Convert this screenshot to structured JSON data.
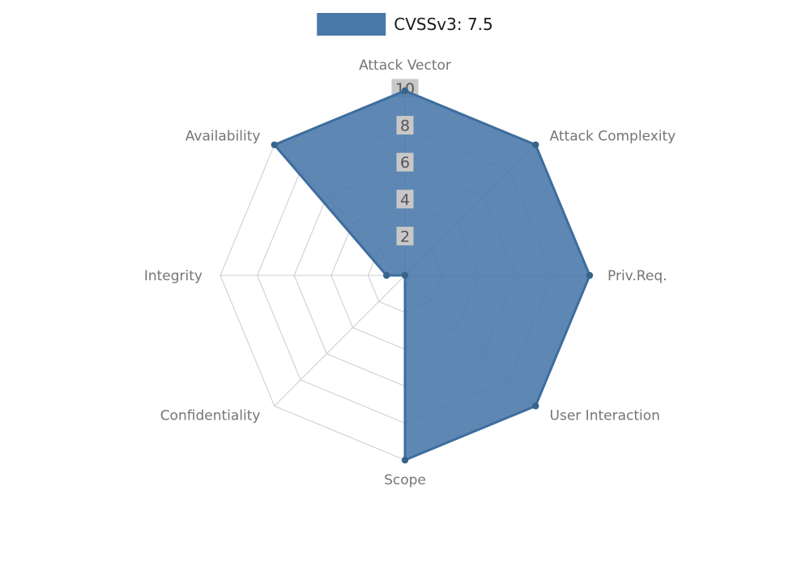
{
  "chart_data": {
    "type": "radar",
    "title": "",
    "legend": [
      {
        "label": "CVSSv3: 7.5"
      }
    ],
    "axes": [
      "Attack Vector",
      "Attack Complexity",
      "Priv.Req.",
      "User Interaction",
      "Scope",
      "Confidentiality",
      "Integrity",
      "Availability"
    ],
    "series": [
      {
        "name": "CVSSv3: 7.5",
        "values": [
          10,
          10,
          10,
          10,
          10,
          0,
          1,
          10
        ]
      }
    ],
    "scale": {
      "min": 0,
      "max": 10,
      "ticks": [
        2,
        4,
        6,
        8,
        10
      ]
    },
    "layout_hints": {
      "legend_position": "top-center",
      "grid": "polygon-web",
      "tick_labels_on_vertical_axis": true,
      "tick_labels_have_backdrop": true
    }
  },
  "colors": {
    "background": "#ffffff",
    "series_fill": "#4878a8",
    "series_stroke": "#3e6d9e",
    "series_point": "#36648b",
    "grid": "#cccccc",
    "tick_text": "#555555",
    "tick_backdrop": "#c8c8c8",
    "axis_label": "#757575",
    "legend_text": "#1a1a1a"
  }
}
